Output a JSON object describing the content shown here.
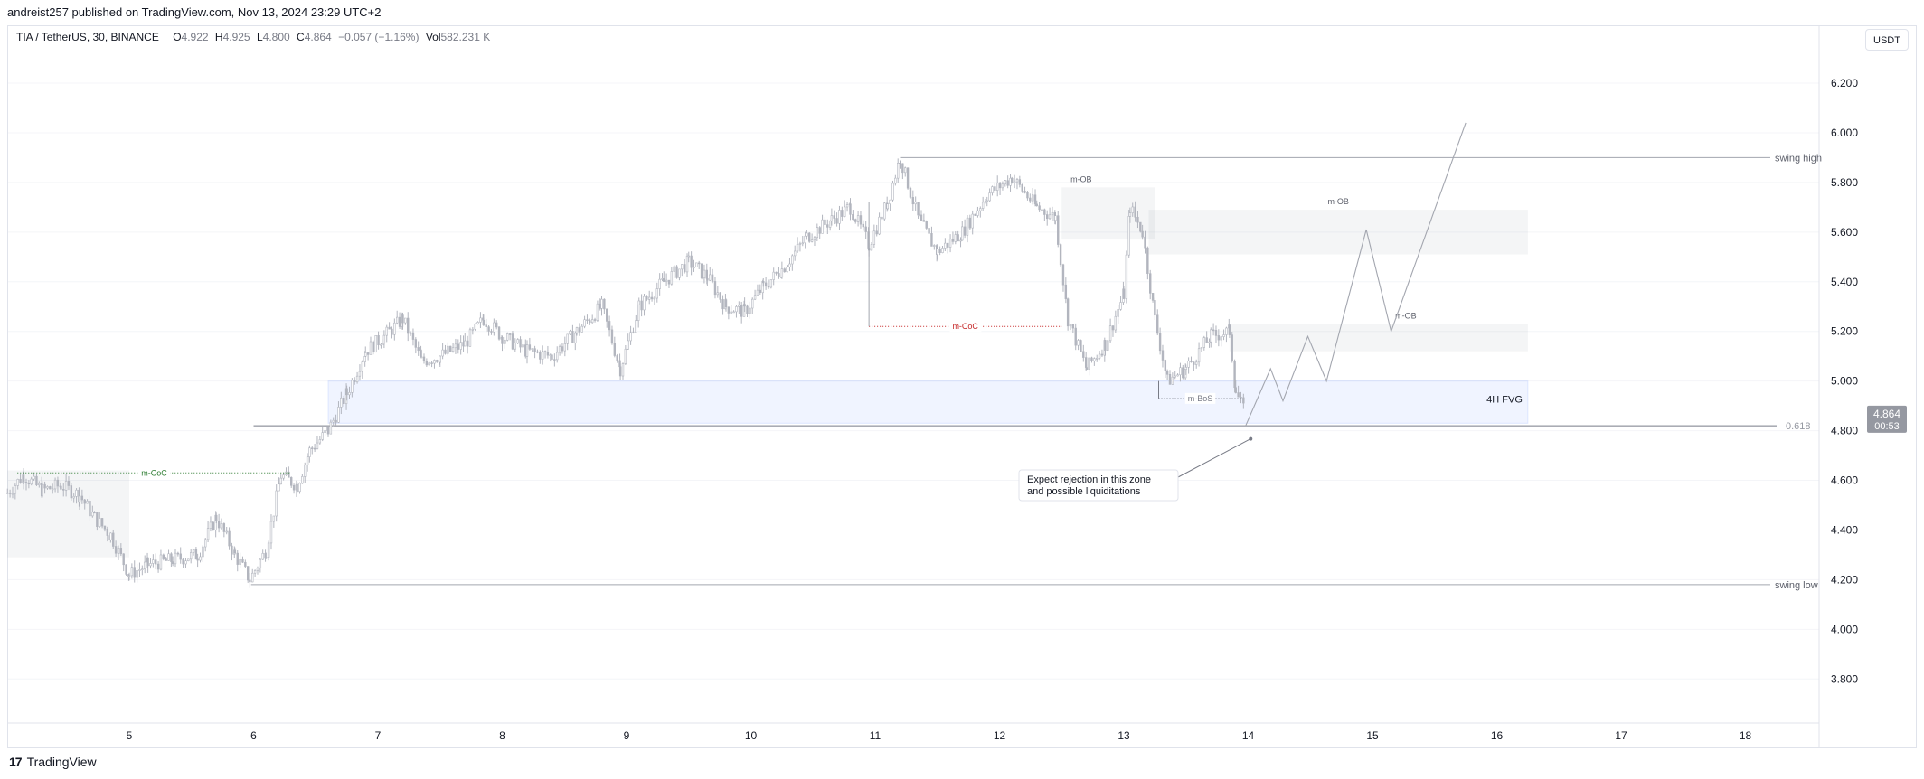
{
  "header": {
    "published": "andreist257 published on TradingView.com, Nov 13, 2024 23:29 UTC+2"
  },
  "legend": {
    "symbol": "TIA / TetherUS, 30, BINANCE",
    "open_label": "O",
    "open": "4.922",
    "high_label": "H",
    "high": "4.925",
    "low_label": "L",
    "low": "4.800",
    "close_label": "C",
    "close": "4.864",
    "change": "−0.057 (−1.16%)",
    "vol_label": "Vol",
    "vol": "582.231 K"
  },
  "currency_button": "USDT",
  "price_tag": {
    "price": "4.864",
    "countdown": "00:53"
  },
  "footer": {
    "brand": "TradingView",
    "logo_icon": "tradingview-logo-icon"
  },
  "colors": {
    "candle": "#b2b5be",
    "grid": "#f0f3fa",
    "fvg": "#2962ff",
    "red_label": "#c62828",
    "green_label": "#2e7d32"
  },
  "chart_data": {
    "type": "candlestick",
    "symbol": "TIA / TetherUS",
    "interval": "30",
    "ylim": [
      3.7,
      6.4
    ],
    "xlim": [
      4.0,
      19.0
    ],
    "y_ticks": [
      "6.200",
      "6.000",
      "5.800",
      "5.600",
      "5.400",
      "5.200",
      "5.000",
      "4.800",
      "4.600",
      "4.400",
      "4.200",
      "4.000",
      "3.800"
    ],
    "x_ticks": [
      "5",
      "6",
      "7",
      "8",
      "9",
      "10",
      "11",
      "12",
      "13",
      "14",
      "15",
      "16",
      "17",
      "18"
    ],
    "price_path": [
      [
        4.02,
        4.55
      ],
      [
        4.15,
        4.62
      ],
      [
        4.3,
        4.56
      ],
      [
        4.45,
        4.58
      ],
      [
        4.6,
        4.54
      ],
      [
        4.72,
        4.45
      ],
      [
        4.85,
        4.38
      ],
      [
        5.0,
        4.22
      ],
      [
        5.15,
        4.26
      ],
      [
        5.35,
        4.28
      ],
      [
        5.55,
        4.3
      ],
      [
        5.7,
        4.45
      ],
      [
        5.85,
        4.3
      ],
      [
        5.97,
        4.2
      ],
      [
        6.1,
        4.32
      ],
      [
        6.22,
        4.62
      ],
      [
        6.35,
        4.58
      ],
      [
        6.45,
        4.72
      ],
      [
        6.6,
        4.8
      ],
      [
        6.75,
        4.95
      ],
      [
        6.9,
        5.12
      ],
      [
        7.05,
        5.18
      ],
      [
        7.2,
        5.25
      ],
      [
        7.35,
        5.08
      ],
      [
        7.5,
        5.1
      ],
      [
        7.7,
        5.15
      ],
      [
        7.85,
        5.25
      ],
      [
        8.0,
        5.18
      ],
      [
        8.2,
        5.12
      ],
      [
        8.4,
        5.1
      ],
      [
        8.6,
        5.2
      ],
      [
        8.8,
        5.3
      ],
      [
        8.95,
        5.05
      ],
      [
        9.1,
        5.3
      ],
      [
        9.3,
        5.4
      ],
      [
        9.5,
        5.48
      ],
      [
        9.65,
        5.42
      ],
      [
        9.8,
        5.3
      ],
      [
        9.95,
        5.28
      ],
      [
        10.1,
        5.38
      ],
      [
        10.25,
        5.45
      ],
      [
        10.45,
        5.58
      ],
      [
        10.65,
        5.65
      ],
      [
        10.8,
        5.7
      ],
      [
        10.95,
        5.55
      ],
      [
        11.1,
        5.72
      ],
      [
        11.2,
        5.9
      ],
      [
        11.35,
        5.65
      ],
      [
        11.5,
        5.52
      ],
      [
        11.7,
        5.6
      ],
      [
        11.9,
        5.75
      ],
      [
        12.1,
        5.82
      ],
      [
        12.3,
        5.7
      ],
      [
        12.45,
        5.66
      ],
      [
        12.55,
        5.25
      ],
      [
        12.7,
        5.05
      ],
      [
        12.85,
        5.15
      ],
      [
        13.0,
        5.35
      ],
      [
        13.05,
        5.7
      ],
      [
        13.15,
        5.6
      ],
      [
        13.25,
        5.25
      ],
      [
        13.35,
        5.0
      ],
      [
        13.5,
        5.05
      ],
      [
        13.7,
        5.18
      ],
      [
        13.85,
        5.2
      ],
      [
        13.9,
        4.96
      ],
      [
        13.98,
        4.86
      ]
    ],
    "levels": [
      {
        "label": "swing high",
        "price": 5.9,
        "x_start": 11.2
      },
      {
        "label": "swing low",
        "price": 4.18,
        "x_start": 5.98
      },
      {
        "label": "0.618",
        "price": 4.82,
        "x_start": 6.0
      }
    ],
    "zones": [
      {
        "label": "4H FVG",
        "x": [
          6.6,
          16.25
        ],
        "y": [
          4.83,
          5.0
        ]
      },
      {
        "label": "m-OB",
        "x": [
          12.5,
          13.25
        ],
        "y": [
          5.57,
          5.78
        ]
      },
      {
        "label": "m-OB",
        "x": [
          13.2,
          16.25
        ],
        "y": [
          5.51,
          5.69
        ]
      },
      {
        "label": "m-OB",
        "x": [
          13.85,
          16.25
        ],
        "y": [
          5.12,
          5.23
        ]
      },
      {
        "label": "",
        "x": [
          4.02,
          5.0
        ],
        "y": [
          4.29,
          4.64
        ]
      }
    ],
    "structure_marks": [
      {
        "label": "m-CoC",
        "color": "green",
        "price": 4.63,
        "x": [
          4.1,
          6.3
        ]
      },
      {
        "label": "m-CoC",
        "color": "red",
        "price": 5.22,
        "x": [
          10.95,
          12.5
        ]
      },
      {
        "label": "m-BoS",
        "color": "gray",
        "price": 4.93,
        "x": [
          13.28,
          13.95
        ]
      }
    ],
    "projection_path": [
      [
        13.98,
        4.82
      ],
      [
        14.18,
        5.05
      ],
      [
        14.28,
        4.92
      ],
      [
        14.48,
        5.18
      ],
      [
        14.63,
        5.0
      ],
      [
        14.95,
        5.61
      ],
      [
        15.15,
        5.2
      ],
      [
        15.75,
        6.04
      ]
    ],
    "annotation": {
      "text_line1": "Expect rejection in this zone",
      "text_line2": "and possible liquiditations",
      "target": [
        14.02,
        4.76
      ]
    }
  }
}
